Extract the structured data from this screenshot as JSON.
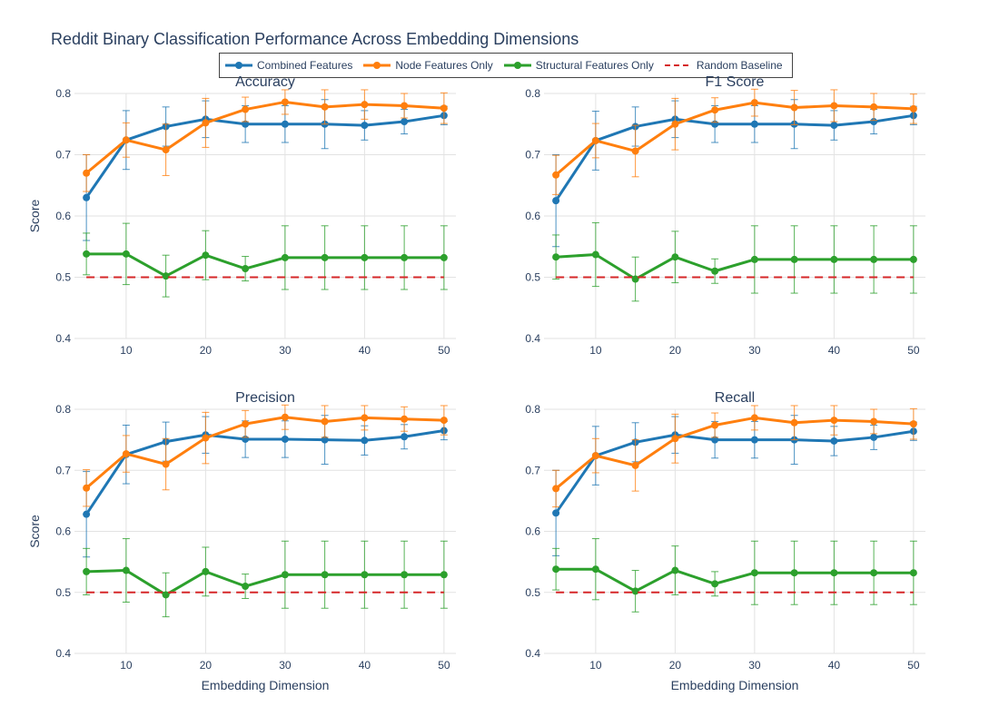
{
  "title": "Reddit Binary Classification Performance Across Embedding Dimensions",
  "legend": [
    {
      "name": "Combined Features",
      "color": "#1f77b4",
      "dash": false,
      "marker": true
    },
    {
      "name": "Node Features Only",
      "color": "#ff7f0e",
      "dash": false,
      "marker": true
    },
    {
      "name": "Structural Features Only",
      "color": "#2ca02c",
      "dash": false,
      "marker": true
    },
    {
      "name": "Random Baseline",
      "color": "#d62728",
      "dash": true,
      "marker": false
    }
  ],
  "chart_data": [
    {
      "type": "line",
      "title": "Accuracy",
      "xlabel": "",
      "ylabel": "Score",
      "x": [
        5,
        10,
        15,
        20,
        25,
        30,
        35,
        40,
        45,
        50
      ],
      "xlim": [
        3.5,
        51.5
      ],
      "ylim": [
        0.4,
        0.8
      ],
      "xticks": [
        10,
        20,
        30,
        40,
        50
      ],
      "yticks": [
        0.4,
        0.5,
        0.6,
        0.7,
        0.8
      ],
      "grid": true,
      "series": [
        {
          "name": "Combined Features",
          "color": "#1f77b4",
          "values": [
            0.63,
            0.724,
            0.746,
            0.758,
            0.75,
            0.75,
            0.75,
            0.748,
            0.754,
            0.764
          ],
          "errors": [
            0.07,
            0.048,
            0.032,
            0.03,
            0.03,
            0.03,
            0.04,
            0.024,
            0.02,
            0.015
          ]
        },
        {
          "name": "Node Features Only",
          "color": "#ff7f0e",
          "values": [
            0.67,
            0.724,
            0.708,
            0.752,
            0.774,
            0.786,
            0.778,
            0.782,
            0.78,
            0.776
          ],
          "errors": [
            0.03,
            0.028,
            0.042,
            0.04,
            0.02,
            0.02,
            0.028,
            0.024,
            0.02,
            0.025
          ]
        },
        {
          "name": "Structural Features Only",
          "color": "#2ca02c",
          "values": [
            0.538,
            0.538,
            0.502,
            0.536,
            0.514,
            0.532,
            0.532,
            0.532,
            0.532,
            0.532
          ],
          "errors": [
            0.034,
            0.05,
            0.034,
            0.04,
            0.02,
            0.052,
            0.052,
            0.052,
            0.052,
            0.052
          ]
        },
        {
          "name": "Random Baseline",
          "color": "#d62728",
          "dash": true,
          "values": [
            0.5,
            0.5,
            0.5,
            0.5,
            0.5,
            0.5,
            0.5,
            0.5,
            0.5,
            0.5
          ]
        }
      ]
    },
    {
      "type": "line",
      "title": "F1 Score",
      "xlabel": "",
      "ylabel": "",
      "x": [
        5,
        10,
        15,
        20,
        25,
        30,
        35,
        40,
        45,
        50
      ],
      "xlim": [
        3.5,
        51.5
      ],
      "ylim": [
        0.4,
        0.8
      ],
      "xticks": [
        10,
        20,
        30,
        40,
        50
      ],
      "yticks": [
        0.4,
        0.5,
        0.6,
        0.7,
        0.8
      ],
      "grid": true,
      "series": [
        {
          "name": "Combined Features",
          "color": "#1f77b4",
          "values": [
            0.625,
            0.723,
            0.746,
            0.758,
            0.75,
            0.75,
            0.75,
            0.748,
            0.754,
            0.764
          ],
          "errors": [
            0.075,
            0.048,
            0.032,
            0.03,
            0.03,
            0.03,
            0.04,
            0.024,
            0.02,
            0.015
          ]
        },
        {
          "name": "Node Features Only",
          "color": "#ff7f0e",
          "values": [
            0.667,
            0.723,
            0.706,
            0.75,
            0.773,
            0.785,
            0.777,
            0.78,
            0.778,
            0.775
          ],
          "errors": [
            0.032,
            0.028,
            0.042,
            0.042,
            0.02,
            0.022,
            0.028,
            0.026,
            0.022,
            0.024
          ]
        },
        {
          "name": "Structural Features Only",
          "color": "#2ca02c",
          "values": [
            0.533,
            0.537,
            0.497,
            0.533,
            0.51,
            0.529,
            0.529,
            0.529,
            0.529,
            0.529
          ],
          "errors": [
            0.036,
            0.052,
            0.036,
            0.042,
            0.02,
            0.055,
            0.055,
            0.055,
            0.055,
            0.055
          ]
        },
        {
          "name": "Random Baseline",
          "color": "#d62728",
          "dash": true,
          "values": [
            0.5,
            0.5,
            0.5,
            0.5,
            0.5,
            0.5,
            0.5,
            0.5,
            0.5,
            0.5
          ]
        }
      ]
    },
    {
      "type": "line",
      "title": "Precision",
      "xlabel": "Embedding Dimension",
      "ylabel": "Score",
      "x": [
        5,
        10,
        15,
        20,
        25,
        30,
        35,
        40,
        45,
        50
      ],
      "xlim": [
        3.5,
        51.5
      ],
      "ylim": [
        0.4,
        0.8
      ],
      "xticks": [
        10,
        20,
        30,
        40,
        50
      ],
      "yticks": [
        0.4,
        0.5,
        0.6,
        0.7,
        0.8
      ],
      "grid": true,
      "series": [
        {
          "name": "Combined Features",
          "color": "#1f77b4",
          "values": [
            0.628,
            0.726,
            0.747,
            0.758,
            0.751,
            0.751,
            0.75,
            0.749,
            0.755,
            0.765
          ],
          "errors": [
            0.07,
            0.048,
            0.032,
            0.03,
            0.03,
            0.03,
            0.04,
            0.024,
            0.02,
            0.015
          ]
        },
        {
          "name": "Node Features Only",
          "color": "#ff7f0e",
          "values": [
            0.671,
            0.727,
            0.71,
            0.753,
            0.776,
            0.787,
            0.78,
            0.786,
            0.784,
            0.782
          ],
          "errors": [
            0.03,
            0.03,
            0.042,
            0.042,
            0.022,
            0.02,
            0.026,
            0.02,
            0.02,
            0.024
          ]
        },
        {
          "name": "Structural Features Only",
          "color": "#2ca02c",
          "values": [
            0.534,
            0.536,
            0.496,
            0.534,
            0.51,
            0.529,
            0.529,
            0.529,
            0.529,
            0.529
          ],
          "errors": [
            0.038,
            0.052,
            0.036,
            0.04,
            0.02,
            0.055,
            0.055,
            0.055,
            0.055,
            0.055
          ]
        },
        {
          "name": "Random Baseline",
          "color": "#d62728",
          "dash": true,
          "values": [
            0.5,
            0.5,
            0.5,
            0.5,
            0.5,
            0.5,
            0.5,
            0.5,
            0.5,
            0.5
          ]
        }
      ]
    },
    {
      "type": "line",
      "title": "Recall",
      "xlabel": "Embedding Dimension",
      "ylabel": "",
      "x": [
        5,
        10,
        15,
        20,
        25,
        30,
        35,
        40,
        45,
        50
      ],
      "xlim": [
        3.5,
        51.5
      ],
      "ylim": [
        0.4,
        0.8
      ],
      "xticks": [
        10,
        20,
        30,
        40,
        50
      ],
      "yticks": [
        0.4,
        0.5,
        0.6,
        0.7,
        0.8
      ],
      "grid": true,
      "series": [
        {
          "name": "Combined Features",
          "color": "#1f77b4",
          "values": [
            0.63,
            0.724,
            0.746,
            0.758,
            0.75,
            0.75,
            0.75,
            0.748,
            0.754,
            0.764
          ],
          "errors": [
            0.07,
            0.048,
            0.032,
            0.03,
            0.03,
            0.03,
            0.04,
            0.024,
            0.02,
            0.015
          ]
        },
        {
          "name": "Node Features Only",
          "color": "#ff7f0e",
          "values": [
            0.67,
            0.724,
            0.708,
            0.752,
            0.774,
            0.786,
            0.778,
            0.782,
            0.78,
            0.776
          ],
          "errors": [
            0.03,
            0.028,
            0.042,
            0.04,
            0.02,
            0.02,
            0.028,
            0.024,
            0.02,
            0.025
          ]
        },
        {
          "name": "Structural Features Only",
          "color": "#2ca02c",
          "values": [
            0.538,
            0.538,
            0.502,
            0.536,
            0.514,
            0.532,
            0.532,
            0.532,
            0.532,
            0.532
          ],
          "errors": [
            0.034,
            0.05,
            0.034,
            0.04,
            0.02,
            0.052,
            0.052,
            0.052,
            0.052,
            0.052
          ]
        },
        {
          "name": "Random Baseline",
          "color": "#d62728",
          "dash": true,
          "values": [
            0.5,
            0.5,
            0.5,
            0.5,
            0.5,
            0.5,
            0.5,
            0.5,
            0.5,
            0.5
          ]
        }
      ]
    }
  ]
}
